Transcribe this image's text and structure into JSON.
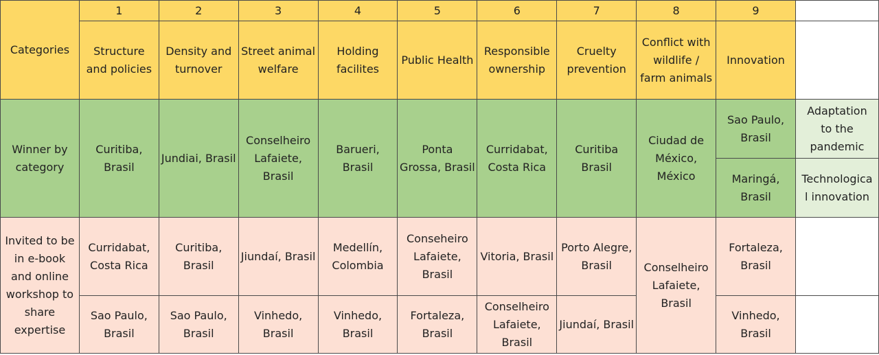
{
  "column_numbers": [
    "1",
    "2",
    "3",
    "4",
    "5",
    "6",
    "7",
    "8",
    "9"
  ],
  "categories_label": "Categories",
  "categories": [
    "Structure\nand policies",
    "Density and\nturnover",
    "Street animal\nwelfare",
    "Holding\nfacilites",
    "Public Health",
    "Responsible\nownership",
    "Cruelty\nprevention",
    "Conflict with\nwildlife /\nfarm animals",
    "Innovation"
  ],
  "winner_label": "Winner by\ncategory",
  "winners": [
    "Curitiba,\nBrasil",
    "Jundiai, Brasil",
    "Conselheiro\nLafaiete,\nBrasil",
    "Barueri,\nBrasil",
    "Ponta\nGrossa, Brasil",
    "Curridabat,\nCosta Rica",
    "Curitiba\nBrasil",
    "Ciudad de\nMéxico,\nMéxico"
  ],
  "innovation_winners": [
    {
      "city": "Sao Paulo,\nBrasil",
      "subcategory": "Adaptation\nto the\npandemic"
    },
    {
      "city": "Maringá,\nBrasil",
      "subcategory": "Technologica\nl innovation"
    }
  ],
  "invited_label": "Invited to be\nin e-book\nand online\nworkshop to\nshare\nexpertise",
  "invited_row1": [
    "Curridabat,\nCosta Rica",
    "Curitiba,\nBrasil",
    "Jiundaí, Brasil",
    "Medellín,\nColombia",
    "Conseheiro\nLafaiete,\nBrasil",
    "Vitoria, Brasil",
    "Porto Alegre,\nBrasil"
  ],
  "invited_col8": "Conselheiro\nLafaiete,\nBrasil",
  "invited_col9_row1": "Fortaleza,\nBrasil",
  "invited_row2": [
    "Sao Paulo,\nBrasil",
    "Sao Paulo,\nBrasil",
    "Vinhedo,\nBrasil",
    "Vinhedo,\nBrasil",
    "Fortaleza,\nBrasil",
    "Conselheiro\nLafaiete,\nBrasil",
    "Jiundaí, Brasil"
  ],
  "invited_col9_row2": "Vinhedo,\nBrasil",
  "colors": {
    "header_yellow": "#fdd865",
    "winner_green": "#a8d08d",
    "invited_pink": "#fde0d4",
    "subcategory_green": "#e3efd9"
  }
}
